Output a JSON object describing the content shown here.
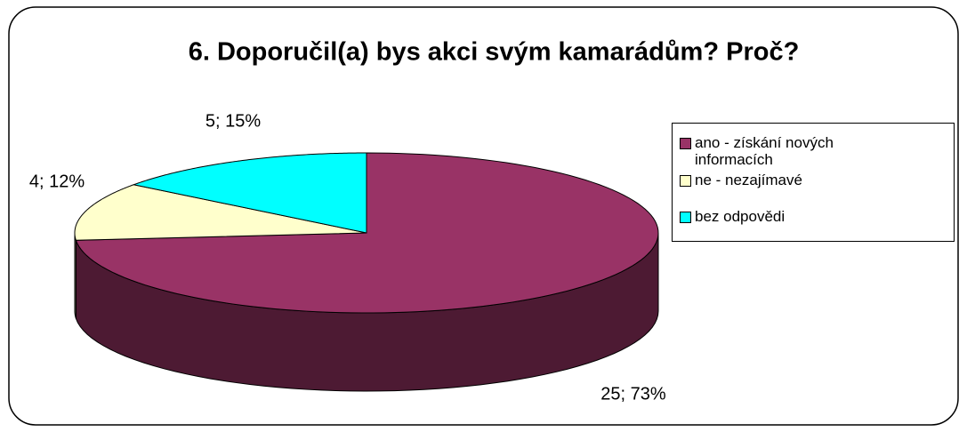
{
  "chart_data": {
    "type": "pie3d",
    "title": "6. Doporučil(a) bys akci svým kamarádům? Proč?",
    "categories": [
      "ano - získání nových informacích",
      "ne - nezajímavé",
      "bez odpovědi"
    ],
    "values": [
      25,
      4,
      5
    ],
    "value_labels": [
      "25; 73%",
      "4; 12%",
      "5; 15%"
    ],
    "colors": [
      "#993366",
      "#ffffcc",
      "#00ffff"
    ],
    "legend": "right"
  }
}
